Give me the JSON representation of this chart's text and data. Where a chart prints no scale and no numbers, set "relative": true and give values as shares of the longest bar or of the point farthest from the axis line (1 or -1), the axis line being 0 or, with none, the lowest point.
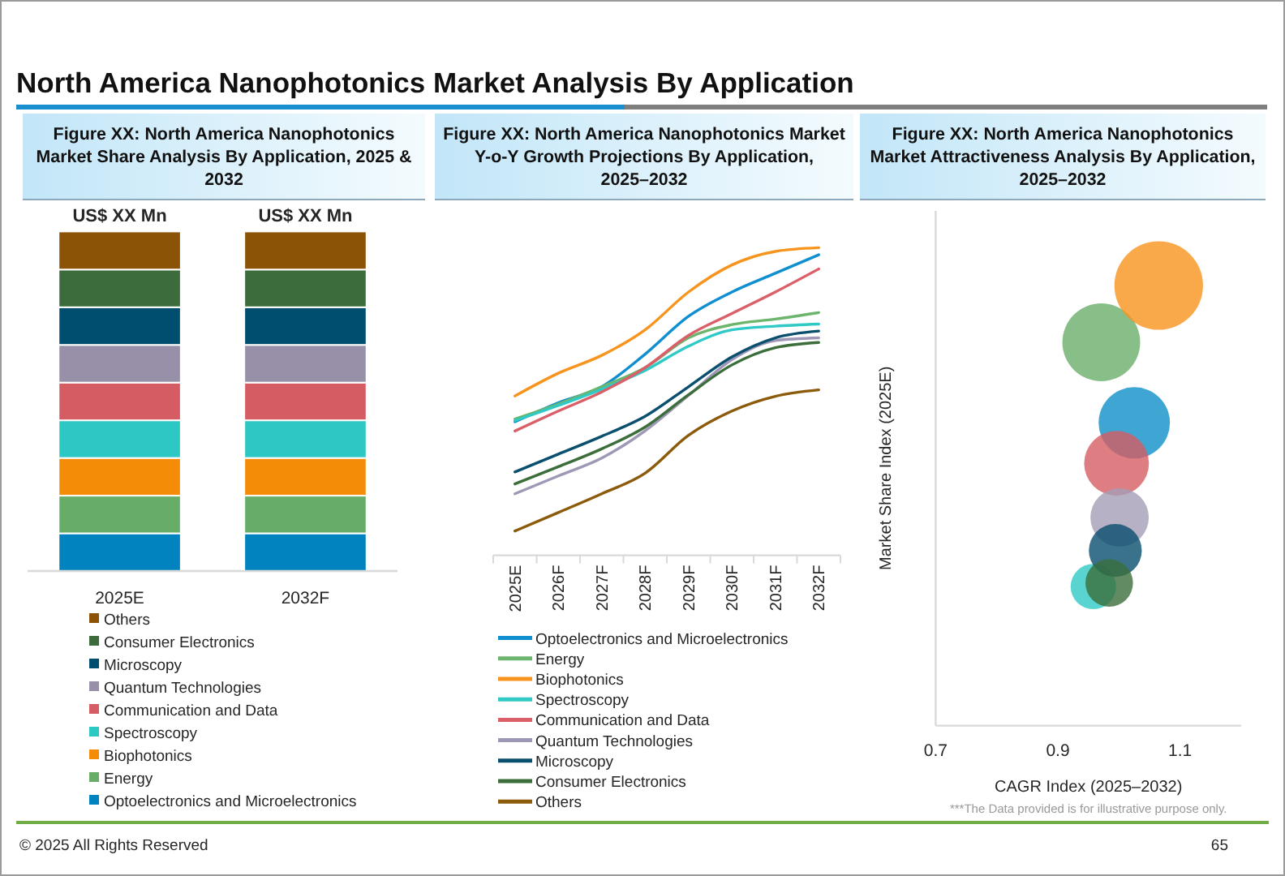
{
  "chart_data": [
    {
      "type": "other",
      "title": "North America Nanophotonics Market Analysis By Application"
    },
    {
      "type": "bar",
      "title": "Figure XX: North America Nanophotonics Market Share Analysis By Application, 2025 & 2032",
      "stacked": true,
      "relative": true,
      "legend": "bottom",
      "categories": [
        "2025E",
        "2032F"
      ],
      "totals": [
        "US$ XX Mn",
        "US$ XX Mn"
      ],
      "series": [
        {
          "name": "Optoelectronics and Microelectronics",
          "color": "#0083bf",
          "values": [
            0.111,
            0.111
          ]
        },
        {
          "name": "Energy",
          "color": "#67ad67",
          "values": [
            0.111,
            0.111
          ]
        },
        {
          "name": "Biophotonics",
          "color": "#f58c07",
          "values": [
            0.111,
            0.111
          ]
        },
        {
          "name": "Spectroscopy",
          "color": "#2ec8c4",
          "values": [
            0.111,
            0.111
          ]
        },
        {
          "name": "Communication and Data",
          "color": "#d65c63",
          "values": [
            0.111,
            0.111
          ]
        },
        {
          "name": "Quantum Technologies",
          "color": "#9790a8",
          "values": [
            0.111,
            0.111
          ]
        },
        {
          "name": "Microscopy",
          "color": "#004e6f",
          "values": [
            0.111,
            0.111
          ]
        },
        {
          "name": "Consumer Electronics",
          "color": "#3c6b3c",
          "values": [
            0.111,
            0.111
          ]
        },
        {
          "name": "Others",
          "color": "#8b5305",
          "values": [
            0.112,
            0.112
          ]
        }
      ]
    },
    {
      "type": "line",
      "title": "Figure XX: North America Nanophotonics Market Y-o-Y Growth Projections By Application, 2025–2032",
      "relative": true,
      "legend": "bottom",
      "categories": [
        "2025E",
        "2026F",
        "2027F",
        "2028F",
        "2029F",
        "2030F",
        "2031F",
        "2032F"
      ],
      "series": [
        {
          "name": "Optoelectronics and Microelectronics",
          "color": "#0f8fcf",
          "values": [
            0.434,
            0.496,
            0.548,
            0.654,
            0.777,
            0.856,
            0.917,
            0.977
          ]
        },
        {
          "name": "Energy",
          "color": "#6db56d",
          "values": [
            0.443,
            0.492,
            0.548,
            0.61,
            0.707,
            0.75,
            0.768,
            0.789
          ]
        },
        {
          "name": "Biophotonics",
          "color": "#f7941d",
          "values": [
            0.518,
            0.592,
            0.65,
            0.733,
            0.856,
            0.944,
            0.988,
            1
          ]
        },
        {
          "name": "Spectroscopy",
          "color": "#2fc9c6",
          "values": [
            0.438,
            0.487,
            0.54,
            0.601,
            0.68,
            0.733,
            0.745,
            0.752
          ]
        },
        {
          "name": "Communication and Data",
          "color": "#db5f68",
          "values": [
            0.404,
            0.469,
            0.531,
            0.61,
            0.715,
            0.786,
            0.856,
            0.931
          ]
        },
        {
          "name": "Quantum Technologies",
          "color": "#9e98b6",
          "values": [
            0.2,
            0.258,
            0.316,
            0.405,
            0.52,
            0.636,
            0.698,
            0.707
          ]
        },
        {
          "name": "Microscopy",
          "color": "#0a4f6e",
          "values": [
            0.271,
            0.329,
            0.387,
            0.452,
            0.548,
            0.645,
            0.707,
            0.729
          ]
        },
        {
          "name": "Consumer Electronics",
          "color": "#3b6e3b",
          "values": [
            0.232,
            0.288,
            0.346,
            0.417,
            0.522,
            0.619,
            0.675,
            0.692
          ]
        },
        {
          "name": "Others",
          "color": "#8b5a0a",
          "values": [
            0.079,
            0.139,
            0.2,
            0.267,
            0.39,
            0.469,
            0.517,
            0.538
          ]
        }
      ]
    },
    {
      "type": "bubble",
      "title": "Figure XX: North America Nanophotonics Market Attractiveness Analysis By Application, 2025–2032",
      "relative": true,
      "xlabel": "CAGR Index (2025–2032)",
      "ylabel": "Market Share Index (2025E)",
      "xlim": [
        0.7,
        1.2
      ],
      "xticks": [
        0.7,
        0.9,
        1.1
      ],
      "x": [
        1.025,
        0.971,
        1.065,
        0.958,
        0.996,
        1.001,
        0.994,
        0.984
      ],
      "values": [
        0.688,
        0.871,
        1,
        0.316,
        0.596,
        0.473,
        0.398,
        0.324
      ],
      "sizes": [
        0.648,
        0.771,
        1,
        0.262,
        0.535,
        0.434,
        0.357,
        0.288
      ],
      "colors": [
        "#0f8fc8",
        "#6aaf6a",
        "#f7941d",
        "#2fc9c6",
        "#d65c63",
        "#a49eb5",
        "#0a4f6e",
        "#3b6e3b"
      ],
      "annotations": [
        "***The Data provided is for illustrative purpose only."
      ]
    },
    {
      "type": "other",
      "annotations": [
        "© 2025 All Rights Reserved",
        "65"
      ]
    }
  ]
}
